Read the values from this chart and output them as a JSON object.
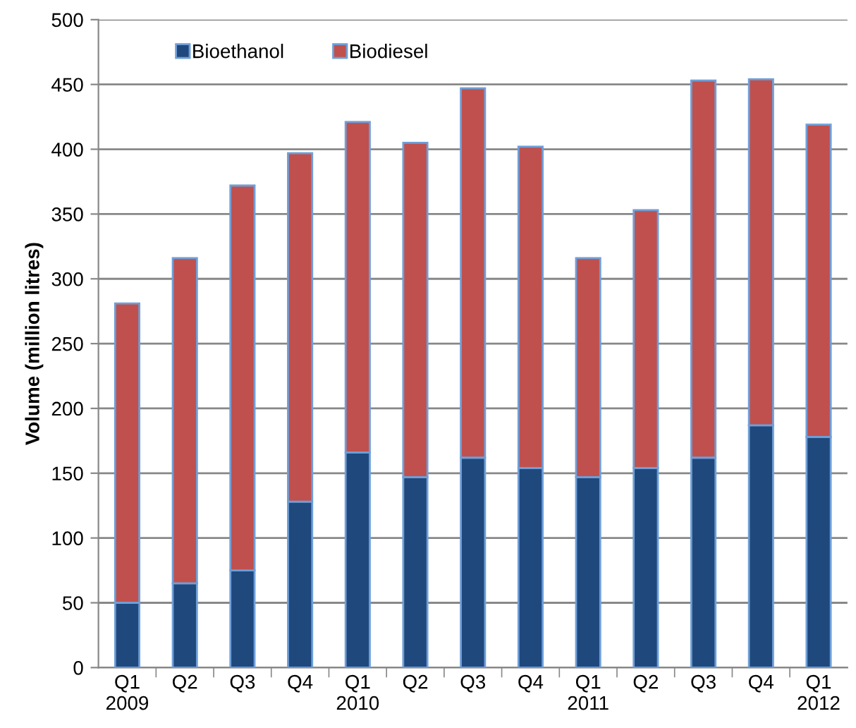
{
  "chart_data": {
    "type": "bar",
    "stacked": true,
    "ylabel": "Volume (million litres)",
    "categories": [
      "Q1\n2009",
      "Q2",
      "Q3",
      "Q4",
      "Q1\n2010",
      "Q2",
      "Q3",
      "Q4",
      "Q1\n2011",
      "Q2",
      "Q3",
      "Q4",
      "Q1\n2012"
    ],
    "series": [
      {
        "name": "Bioethanol",
        "color": "#1f497d",
        "values": [
          50,
          65,
          75,
          128,
          166,
          147,
          162,
          154,
          147,
          154,
          162,
          187,
          178
        ]
      },
      {
        "name": "Biodiesel",
        "color": "#c0504d",
        "values": [
          231,
          251,
          297,
          269,
          255,
          258,
          285,
          248,
          169,
          199,
          291,
          267,
          241
        ]
      }
    ],
    "ylim": [
      0,
      500
    ],
    "yticks": [
      0,
      50,
      100,
      150,
      200,
      250,
      300,
      350,
      400,
      450,
      500
    ],
    "grid": "y",
    "legend": "top left"
  }
}
